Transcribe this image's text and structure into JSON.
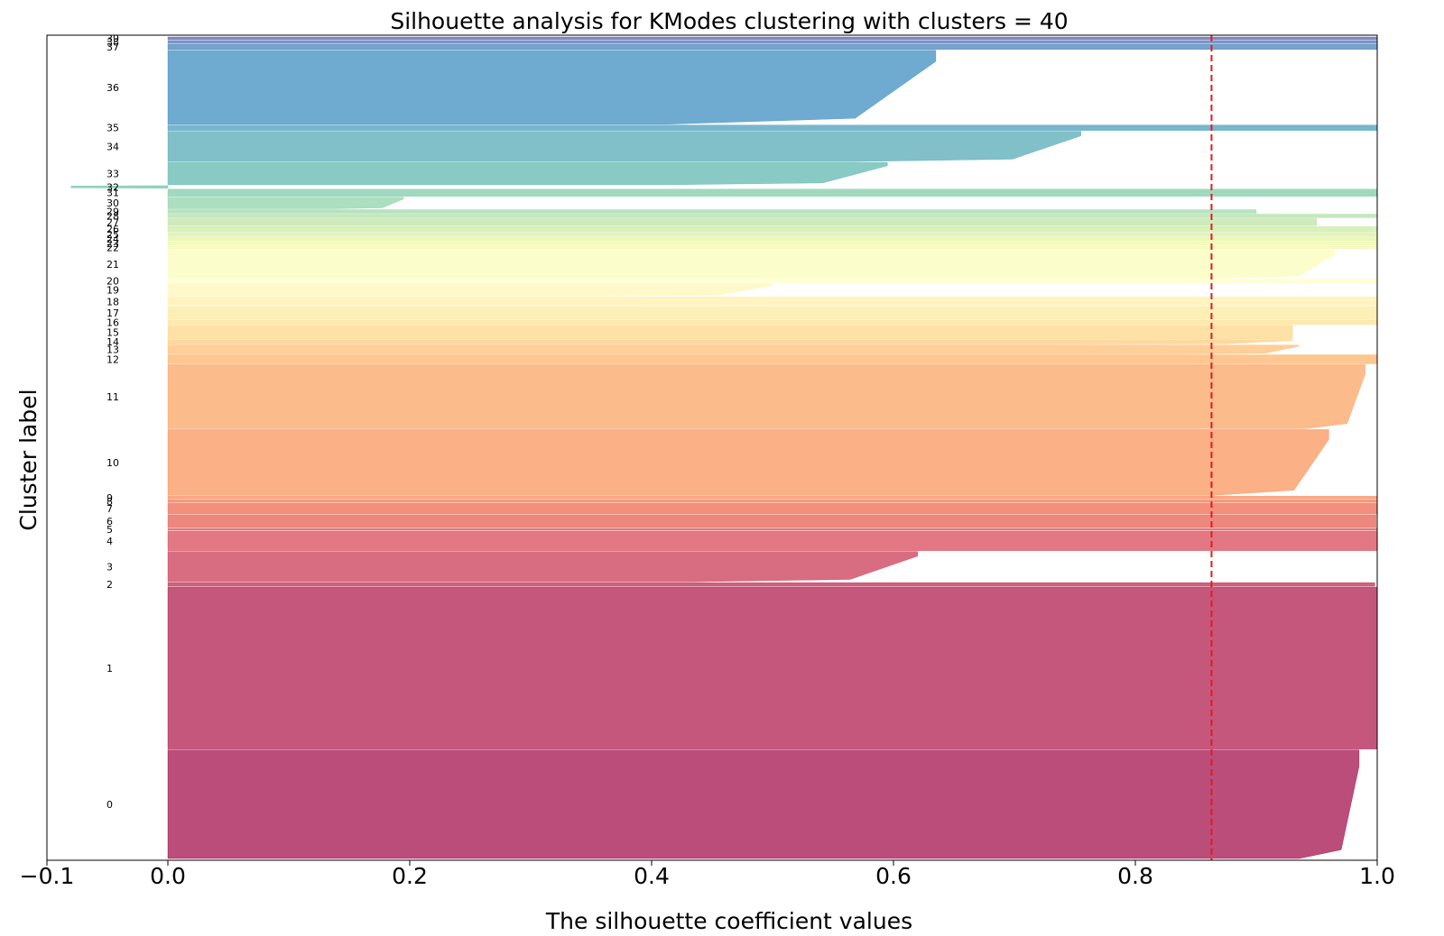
{
  "chart_data": {
    "type": "silhouette",
    "title": "Silhouette analysis for KModes clustering with clusters = 40",
    "xlabel": "The silhouette coefficient values",
    "ylabel": "Cluster label",
    "xlim": [
      -0.1,
      1.0
    ],
    "xticks": [
      {
        "value": -0.1,
        "label": "−0.1"
      },
      {
        "value": 0.0,
        "label": "0.0"
      },
      {
        "value": 0.2,
        "label": "0.2"
      },
      {
        "value": 0.4,
        "label": "0.4"
      },
      {
        "value": 0.6,
        "label": "0.6"
      },
      {
        "value": 0.8,
        "label": "0.8"
      },
      {
        "value": 1.0,
        "label": "1.0"
      }
    ],
    "average_silhouette": 0.863,
    "average_line_color": "#e41a1c",
    "colormap": "Spectral",
    "grid": false,
    "clusters": [
      {
        "label": "0",
        "size": 122,
        "max": 0.985,
        "tail": 0.05
      },
      {
        "label": "1",
        "size": 182,
        "max": 1.0,
        "tail": 0.0
      },
      {
        "label": "2",
        "size": 4,
        "max": 0.998,
        "tail": 0.0
      },
      {
        "label": "3",
        "size": 34,
        "max": 0.62,
        "tail": 0.3
      },
      {
        "label": "4",
        "size": 22,
        "max": 1.0,
        "tail": 0.0
      },
      {
        "label": "5",
        "size": 2,
        "max": 1.0,
        "tail": 0.0
      },
      {
        "label": "6",
        "size": 14,
        "max": 0.999,
        "tail": 0.0
      },
      {
        "label": "7",
        "size": 12,
        "max": 1.0,
        "tail": 0.0
      },
      {
        "label": "8",
        "size": 3,
        "max": 1.0,
        "tail": 0.0
      },
      {
        "label": "9",
        "size": 3,
        "max": 1.0,
        "tail": 0.0
      },
      {
        "label": "10",
        "size": 74,
        "max": 0.96,
        "tail": 0.1
      },
      {
        "label": "11",
        "size": 72,
        "max": 0.99,
        "tail": 0.05
      },
      {
        "label": "12",
        "size": 10,
        "max": 1.0,
        "tail": 0.0
      },
      {
        "label": "13",
        "size": 10,
        "max": 0.935,
        "tail": 0.1
      },
      {
        "label": "14",
        "size": 5,
        "max": 0.93,
        "tail": 0.2
      },
      {
        "label": "15",
        "size": 15,
        "max": 0.93,
        "tail": 0.0
      },
      {
        "label": "16",
        "size": 5,
        "max": 1.0,
        "tail": 0.0
      },
      {
        "label": "17",
        "size": 14,
        "max": 1.0,
        "tail": 0.0
      },
      {
        "label": "18",
        "size": 10,
        "max": 1.0,
        "tail": 0.0
      },
      {
        "label": "19",
        "size": 14,
        "max": 0.5,
        "tail": 0.3
      },
      {
        "label": "20",
        "size": 4,
        "max": 1.0,
        "tail": 0.0
      },
      {
        "label": "21",
        "size": 32,
        "max": 0.965,
        "tail": 0.1
      },
      {
        "label": "22",
        "size": 3,
        "max": 1.0,
        "tail": 0.0
      },
      {
        "label": "23",
        "size": 4,
        "max": 1.0,
        "tail": 0.0
      },
      {
        "label": "24",
        "size": 4,
        "max": 1.0,
        "tail": 0.0
      },
      {
        "label": "25",
        "size": 4,
        "max": 1.0,
        "tail": 0.0
      },
      {
        "label": "26",
        "size": 6,
        "max": 1.0,
        "tail": 0.0
      },
      {
        "label": "27",
        "size": 8,
        "max": 0.95,
        "tail": 0.0
      },
      {
        "label": "28",
        "size": 4,
        "max": 1.0,
        "tail": 0.0
      },
      {
        "label": "29",
        "size": 4,
        "max": 0.9,
        "tail": 0.0
      },
      {
        "label": "30",
        "size": 13,
        "max": 0.195,
        "tail": 0.3
      },
      {
        "label": "31",
        "size": 8,
        "max": 1.0,
        "tail": 0.0
      },
      {
        "label": "32",
        "size": 3,
        "max": 0.0,
        "tail": 0.0,
        "min": -0.08
      },
      {
        "label": "33",
        "size": 25,
        "max": 0.595,
        "tail": 0.3
      },
      {
        "label": "34",
        "size": 34,
        "max": 0.755,
        "tail": 0.25
      },
      {
        "label": "35",
        "size": 6,
        "max": 1.0,
        "tail": 0.0
      },
      {
        "label": "36",
        "size": 83,
        "max": 0.635,
        "tail": 0.35
      },
      {
        "label": "37",
        "size": 6,
        "max": 1.0,
        "tail": 0.0
      },
      {
        "label": "38",
        "size": 3,
        "max": 1.0,
        "tail": 0.0
      },
      {
        "label": "39",
        "size": 3,
        "max": 1.0,
        "tail": 0.0
      }
    ]
  }
}
